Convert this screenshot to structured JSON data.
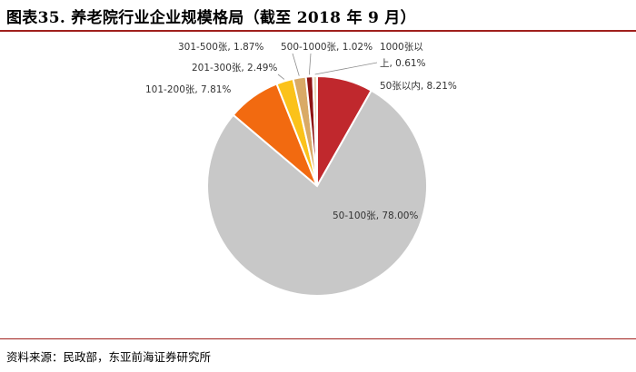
{
  "header": {
    "title": "图表35. 养老院行业企业规模格局（截至 2018 年 9 月）"
  },
  "footer": {
    "source": "资料来源：民政部，东亚前海证券研究所"
  },
  "colors": {
    "accent_rule": "#a0201d"
  },
  "chart_data": {
    "type": "pie",
    "title": "",
    "slices": [
      {
        "label": "50张以内",
        "value": 8.21,
        "value_text": "50张以内, 8.21%",
        "color": "#c0282d"
      },
      {
        "label": "50-100张",
        "value": 78.0,
        "value_text": "50-100张, 78.00%",
        "color": "#c8c8c8"
      },
      {
        "label": "101-200张",
        "value": 7.81,
        "value_text": "101-200张, 7.81%",
        "color": "#f26a10"
      },
      {
        "label": "201-300张",
        "value": 2.49,
        "value_text": "201-300张, 2.49%",
        "color": "#fbc21a"
      },
      {
        "label": "301-500张",
        "value": 1.87,
        "value_text": "301-500张, 1.87%",
        "color": "#d9aa66"
      },
      {
        "label": "500-1000张",
        "value": 1.02,
        "value_text": "500-1000张, 1.02%",
        "color": "#8e1414"
      },
      {
        "label": "1000张以上",
        "value": 0.61,
        "value_text_lines": [
          "1000张以",
          "上, 0.61%"
        ],
        "color": "#e8d8b8"
      }
    ]
  }
}
